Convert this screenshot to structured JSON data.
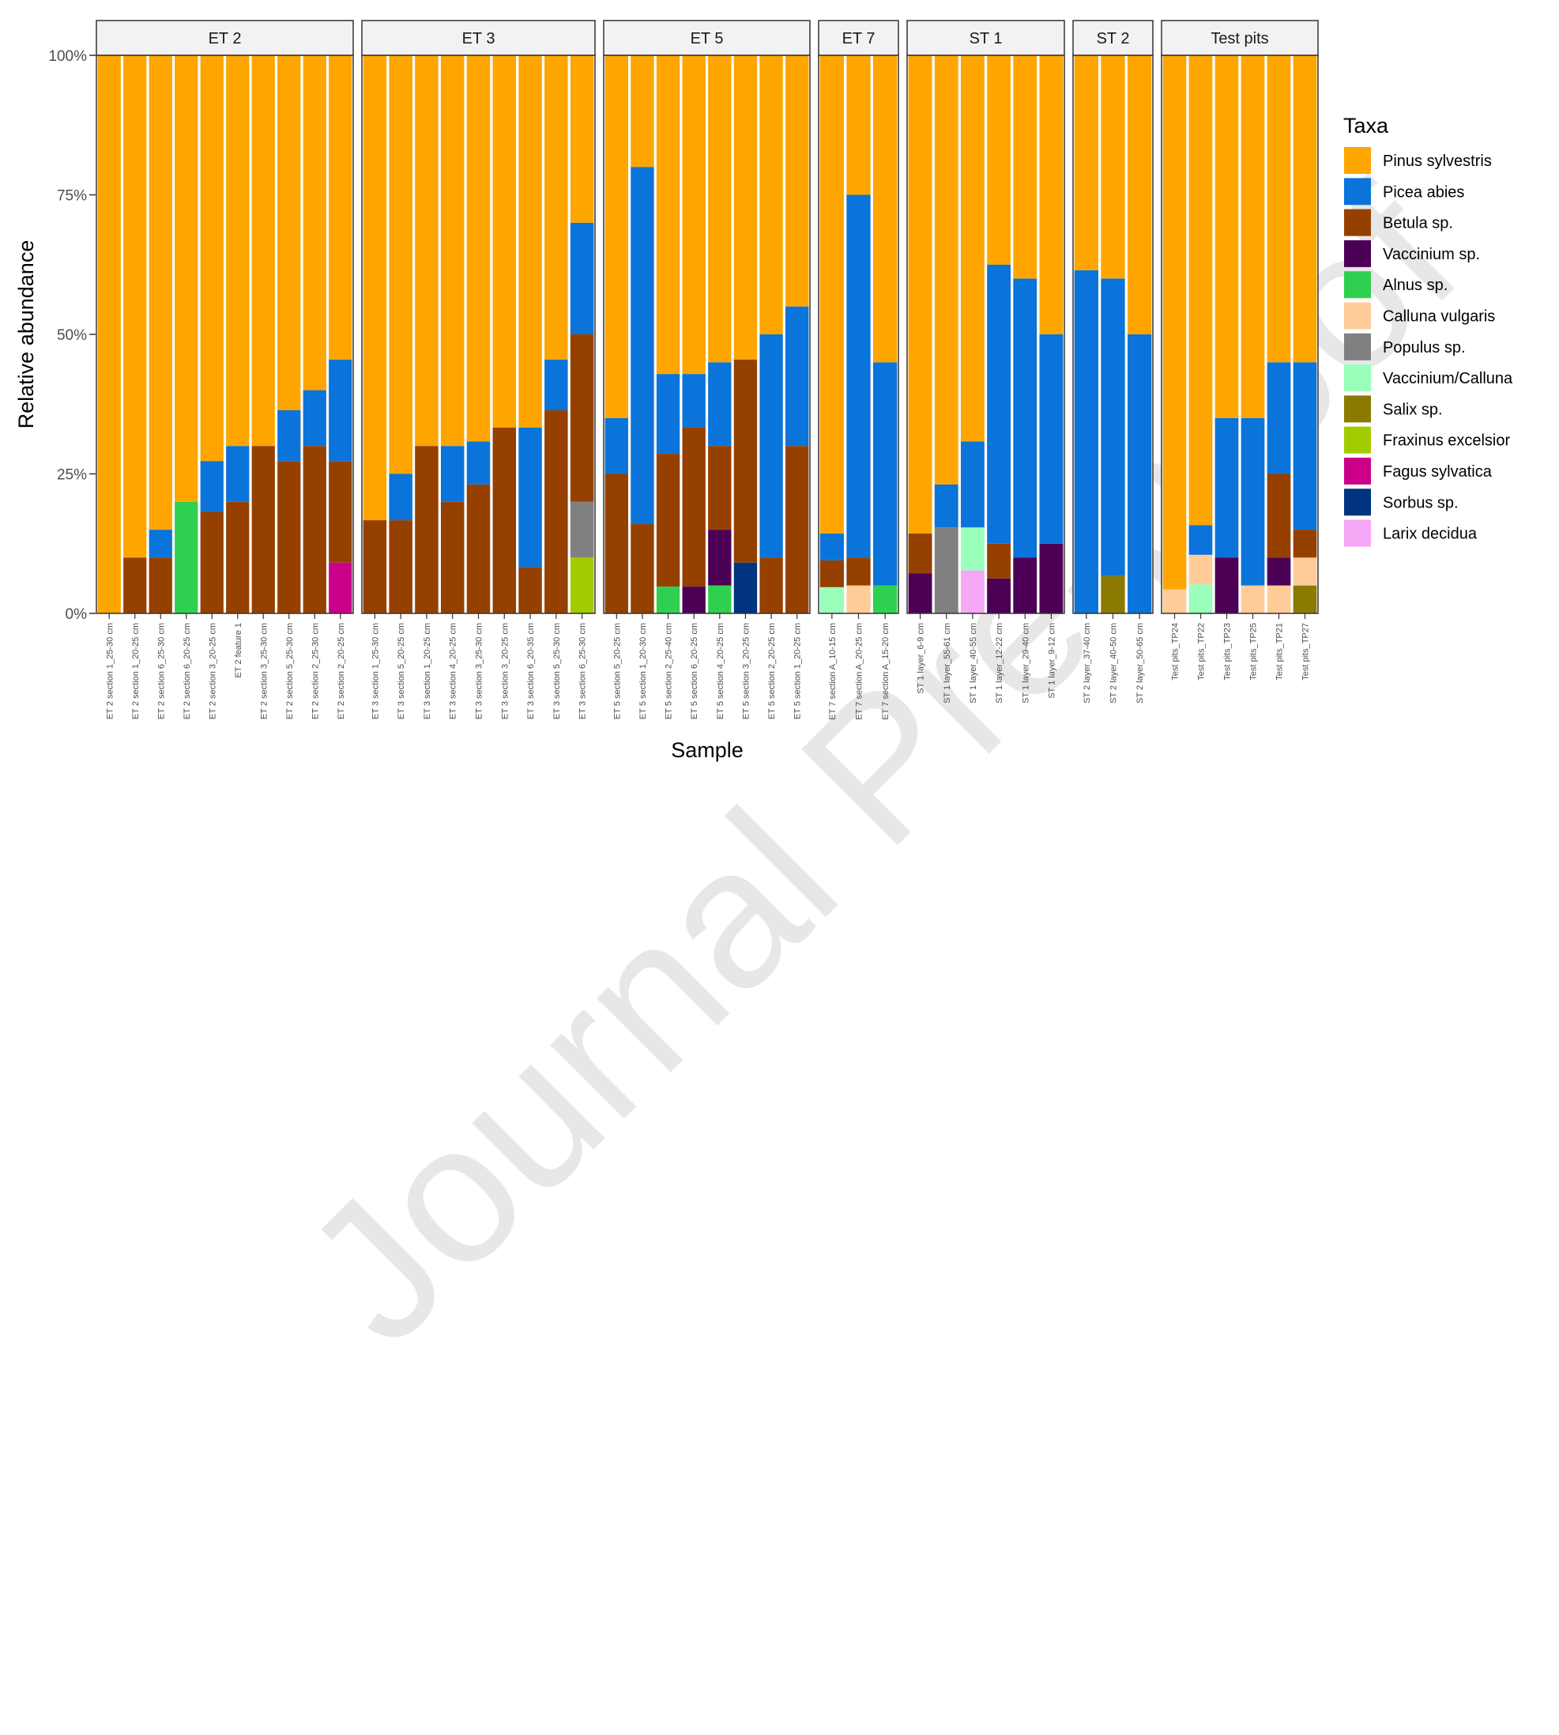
{
  "watermark": "Journal Pre-proof",
  "chart_data": {
    "type": "bar",
    "stacked": true,
    "title": "",
    "xlabel": "Sample",
    "ylabel": "Relative abundance",
    "ylim": [
      0,
      100
    ],
    "y_ticks": [
      "0%",
      "25%",
      "50%",
      "75%",
      "100%"
    ],
    "legend": {
      "title": "Taxa",
      "position": "right"
    },
    "taxa": [
      {
        "name": "Pinus sylvestris",
        "color": "#FFA500"
      },
      {
        "name": "Picea abies",
        "color": "#0A74DA"
      },
      {
        "name": "Betula sp.",
        "color": "#964000"
      },
      {
        "name": "Vaccinium sp.",
        "color": "#4B0055"
      },
      {
        "name": "Alnus sp.",
        "color": "#2FD050"
      },
      {
        "name": "Calluna vulgaris",
        "color": "#FFCC99"
      },
      {
        "name": "Populus sp.",
        "color": "#808080"
      },
      {
        "name": "Vaccinium/Calluna",
        "color": "#99FFBB"
      },
      {
        "name": "Salix sp.",
        "color": "#8C7A00"
      },
      {
        "name": "Fraxinus excelsior",
        "color": "#A3CC00"
      },
      {
        "name": "Fagus sylvatica",
        "color": "#CC0088"
      },
      {
        "name": "Sorbus sp.",
        "color": "#003380"
      },
      {
        "name": "Larix decidua",
        "color": "#F5A8F5"
      }
    ],
    "panels": [
      {
        "name": "ET 2",
        "samples": [
          {
            "label": "ET 2 section 1_25-30 cm",
            "values": [
              100,
              0,
              0,
              0,
              0,
              0,
              0,
              0,
              0,
              0,
              0,
              0,
              0
            ]
          },
          {
            "label": "ET 2 section 1_20-25 cm",
            "values": [
              90,
              0,
              10,
              0,
              0,
              0,
              0,
              0,
              0,
              0,
              0,
              0,
              0
            ]
          },
          {
            "label": "ET 2 section 6_25-30 cm",
            "values": [
              85,
              5,
              10,
              0,
              0,
              0,
              0,
              0,
              0,
              0,
              0,
              0,
              0
            ]
          },
          {
            "label": "ET 2 section 6_20-25 cm",
            "values": [
              80,
              0,
              0,
              0,
              20,
              0,
              0,
              0,
              0,
              0,
              0,
              0,
              0
            ]
          },
          {
            "label": "ET 2 section 3_20-25 cm",
            "values": [
              72.7,
              9.1,
              18.2,
              0,
              0,
              0,
              0,
              0,
              0,
              0,
              0,
              0,
              0
            ]
          },
          {
            "label": "ET 2 feature 1",
            "values": [
              70,
              10,
              20,
              0,
              0,
              0,
              0,
              0,
              0,
              0,
              0,
              0,
              0
            ]
          },
          {
            "label": "ET 2 section 3_25-30 cm",
            "values": [
              70,
              0,
              30,
              0,
              0,
              0,
              0,
              0,
              0,
              0,
              0,
              0,
              0
            ]
          },
          {
            "label": "ET 2 section 5_25-30 cm",
            "values": [
              63.6,
              9.1,
              27.3,
              0,
              0,
              0,
              0,
              0,
              0,
              0,
              0,
              0,
              0
            ]
          },
          {
            "label": "ET 2 section 2_25-30 cm",
            "values": [
              60,
              10,
              30,
              0,
              0,
              0,
              0,
              0,
              0,
              0,
              0,
              0,
              0
            ]
          },
          {
            "label": "ET 2 section 2_20-25 cm",
            "values": [
              54.5,
              18.2,
              18.2,
              0,
              0,
              0,
              0,
              0,
              0,
              0,
              9.1,
              0,
              0
            ]
          }
        ]
      },
      {
        "name": "ET 3",
        "samples": [
          {
            "label": "ET 3 section 1_25-30 cm",
            "values": [
              83.3,
              0,
              16.7,
              0,
              0,
              0,
              0,
              0,
              0,
              0,
              0,
              0,
              0
            ]
          },
          {
            "label": "ET 3 section 5_20-25 cm",
            "values": [
              75,
              8.3,
              16.7,
              0,
              0,
              0,
              0,
              0,
              0,
              0,
              0,
              0,
              0
            ]
          },
          {
            "label": "ET 3 section 1_20-25 cm",
            "values": [
              70,
              0,
              30,
              0,
              0,
              0,
              0,
              0,
              0,
              0,
              0,
              0,
              0
            ]
          },
          {
            "label": "ET 3 section 4_20-25 cm",
            "values": [
              70,
              10,
              20,
              0,
              0,
              0,
              0,
              0,
              0,
              0,
              0,
              0,
              0
            ]
          },
          {
            "label": "ET 3 section 3_25-30 cm",
            "values": [
              69.2,
              7.7,
              23.1,
              0,
              0,
              0,
              0,
              0,
              0,
              0,
              0,
              0,
              0
            ]
          },
          {
            "label": "ET 3 section 3_20-25 cm",
            "values": [
              66.7,
              0,
              33.3,
              0,
              0,
              0,
              0,
              0,
              0,
              0,
              0,
              0,
              0
            ]
          },
          {
            "label": "ET 3 section 6_20-35 cm",
            "values": [
              66.7,
              25,
              8.3,
              0,
              0,
              0,
              0,
              0,
              0,
              0,
              0,
              0,
              0
            ]
          },
          {
            "label": "ET 3 section 5_25-30 cm",
            "values": [
              54.5,
              9.1,
              36.4,
              0,
              0,
              0,
              0,
              0,
              0,
              0,
              0,
              0,
              0
            ]
          },
          {
            "label": "ET 3 section 6_25-30 cm",
            "values": [
              30,
              20,
              30,
              0,
              0,
              0,
              10,
              0,
              0,
              10,
              0,
              0,
              0
            ]
          }
        ]
      },
      {
        "name": "ET 5",
        "samples": [
          {
            "label": "ET 5 section 5_20-25 cm",
            "values": [
              65,
              10,
              25,
              0,
              0,
              0,
              0,
              0,
              0,
              0,
              0,
              0,
              0
            ]
          },
          {
            "label": "ET 5 section 1_20-30 cm",
            "values": [
              20,
              64,
              16,
              0,
              0,
              0,
              0,
              0,
              0,
              0,
              0,
              0,
              0
            ]
          },
          {
            "label": "ET 5 section 2_25-40 cm",
            "values": [
              57.1,
              14.3,
              23.8,
              0,
              4.8,
              0,
              0,
              0,
              0,
              0,
              0,
              0,
              0
            ]
          },
          {
            "label": "ET 5 section 6_20-25 cm",
            "values": [
              57.1,
              9.5,
              28.6,
              4.8,
              0,
              0,
              0,
              0,
              0,
              0,
              0,
              0,
              0
            ]
          },
          {
            "label": "ET 5 section 4_20-25 cm",
            "values": [
              55,
              15,
              15,
              10,
              5,
              0,
              0,
              0,
              0,
              0,
              0,
              0,
              0
            ]
          },
          {
            "label": "ET 5 section 3_20-25 cm",
            "values": [
              54.5,
              0,
              36.4,
              0,
              0,
              0,
              0,
              0,
              0,
              0,
              0,
              9.1,
              0
            ]
          },
          {
            "label": "ET 5 section 2_20-25 cm",
            "values": [
              50,
              40,
              10,
              0,
              0,
              0,
              0,
              0,
              0,
              0,
              0,
              0,
              0
            ]
          },
          {
            "label": "ET 5 section 1_20-25 cm",
            "values": [
              45,
              25,
              30,
              0,
              0,
              0,
              0,
              0,
              0,
              0,
              0,
              0,
              0
            ]
          }
        ]
      },
      {
        "name": "ET 7",
        "samples": [
          {
            "label": "ET 7 section A_10-15 cm",
            "values": [
              85.7,
              4.8,
              4.8,
              0,
              0,
              0,
              0,
              4.7,
              0,
              0,
              0,
              0,
              0
            ]
          },
          {
            "label": "ET 7 section A_20-25 cm",
            "values": [
              25,
              65,
              5,
              0,
              0,
              5,
              0,
              0,
              0,
              0,
              0,
              0,
              0
            ]
          },
          {
            "label": "ET 7 section A_15-20 cm",
            "values": [
              55,
              40,
              0,
              0,
              5,
              0,
              0,
              0,
              0,
              0,
              0,
              0,
              0
            ]
          }
        ]
      },
      {
        "name": "ST 1",
        "samples": [
          {
            "label": "ST 1 layer_6-9 cm",
            "values": [
              85.7,
              0,
              7.1,
              7.2,
              0,
              0,
              0,
              0,
              0,
              0,
              0,
              0,
              0
            ]
          },
          {
            "label": "ST 1 layer_55-61 cm",
            "values": [
              76.9,
              7.7,
              0,
              0,
              0,
              0,
              15.4,
              0,
              0,
              0,
              0,
              0,
              0
            ]
          },
          {
            "label": "ST 1 layer_40-55 cm",
            "values": [
              69.2,
              15.4,
              0,
              0,
              0,
              0,
              0,
              7.7,
              0,
              0,
              0,
              0,
              7.7
            ]
          },
          {
            "label": "ST 1 layer_12-22 cm",
            "values": [
              37.5,
              50,
              6.25,
              6.25,
              0,
              0,
              0,
              0,
              0,
              0,
              0,
              0,
              0
            ]
          },
          {
            "label": "ST 1 layer_29-40 cm",
            "values": [
              40,
              50,
              0,
              10,
              0,
              0,
              0,
              0,
              0,
              0,
              0,
              0,
              0
            ]
          },
          {
            "label": "ST 1 layer_9-12 cm",
            "values": [
              50,
              37.5,
              0,
              12.5,
              0,
              0,
              0,
              0,
              0,
              0,
              0,
              0,
              0
            ]
          }
        ]
      },
      {
        "name": "ST 2",
        "samples": [
          {
            "label": "ST 2 layer_37-40 cm",
            "values": [
              38.5,
              61.5,
              0,
              0,
              0,
              0,
              0,
              0,
              0,
              0,
              0,
              0,
              0
            ]
          },
          {
            "label": "ST 2 layer_40-50 cm",
            "values": [
              40,
              53.3,
              0,
              0,
              0,
              0,
              0,
              0,
              6.7,
              0,
              0,
              0,
              0
            ]
          },
          {
            "label": "ST 2 layer_50-65 cm",
            "values": [
              50,
              50,
              0,
              0,
              0,
              0,
              0,
              0,
              0,
              0,
              0,
              0,
              0
            ]
          }
        ]
      },
      {
        "name": "Test pits",
        "samples": [
          {
            "label": "Test pits_TP24",
            "values": [
              95.7,
              0,
              0,
              0,
              0,
              4.3,
              0,
              0,
              0,
              0,
              0,
              0,
              0
            ]
          },
          {
            "label": "Test pits_TP22",
            "values": [
              84.2,
              5.3,
              0,
              0,
              0,
              5.3,
              0,
              5.2,
              0,
              0,
              0,
              0,
              0
            ]
          },
          {
            "label": "Test pits_TP23",
            "values": [
              65,
              25,
              0,
              10,
              0,
              0,
              0,
              0,
              0,
              0,
              0,
              0,
              0
            ]
          },
          {
            "label": "Test pits_TP25",
            "values": [
              65,
              30,
              0,
              0,
              0,
              5,
              0,
              0,
              0,
              0,
              0,
              0,
              0
            ]
          },
          {
            "label": "Test pits_TP21",
            "values": [
              55,
              20,
              15,
              5,
              0,
              5,
              0,
              0,
              0,
              0,
              0,
              0,
              0
            ]
          },
          {
            "label": "Test pits_TP27",
            "values": [
              55,
              30,
              5,
              0,
              0,
              5,
              0,
              0,
              5,
              0,
              0,
              0,
              0
            ]
          }
        ]
      }
    ]
  }
}
